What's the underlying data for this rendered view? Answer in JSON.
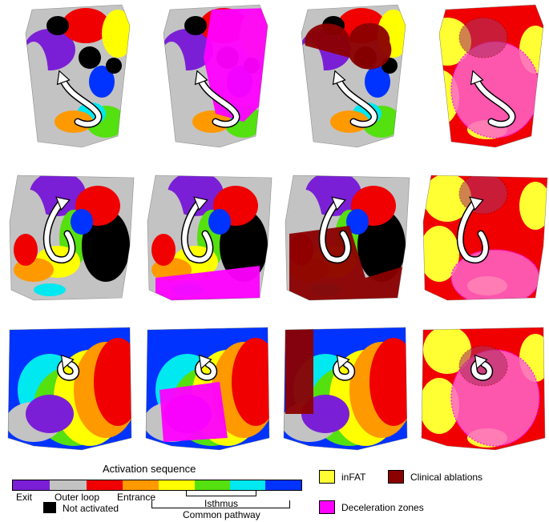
{
  "colors": {
    "exit": "#7a1fd6",
    "outer_loop": "#c3c3c3",
    "red": "#f00000",
    "orange": "#ff9900",
    "yellow": "#ffff00",
    "green": "#55e010",
    "cyan": "#00e8f0",
    "blue": "#0033ff",
    "not_activated": "#000000",
    "infat": "#ffff33",
    "ablation": "#8b0000",
    "deceleration": "#ff00ff"
  },
  "legend": {
    "activation_title": "Activation sequence",
    "segments": [
      "exit",
      "outer_loop",
      "red",
      "orange",
      "yellow",
      "green",
      "cyan",
      "blue"
    ],
    "labels": {
      "exit": "Exit",
      "outer_loop": "Outer loop",
      "entrance": "Entrance",
      "isthmus": "Isthmus",
      "common_pathway": "Common pathway",
      "not_activated": "Not activated"
    },
    "infat": "inFAT",
    "clinical_ablations": "Clinical ablations",
    "deceleration_zones": "Deceleration zones"
  },
  "panels": {
    "rows": 3,
    "cols": 4,
    "overlays": [
      "none",
      "deceleration",
      "ablation",
      "infat"
    ]
  }
}
